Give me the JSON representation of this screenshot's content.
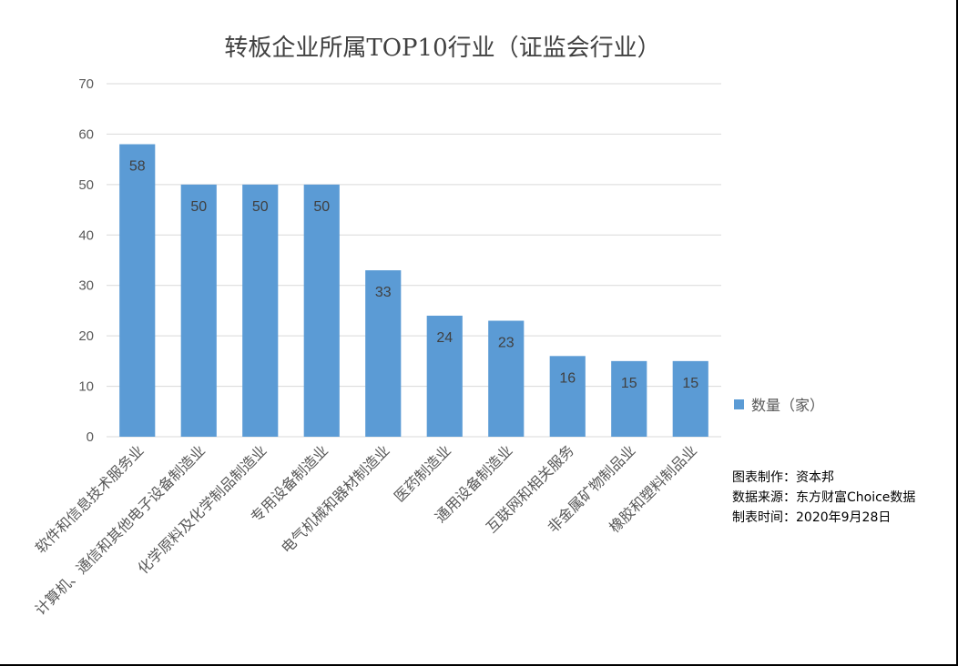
{
  "chart_data": {
    "type": "bar",
    "title": "转板企业所属TOP10行业（证监会行业）",
    "categories": [
      "软件和信息技术服务业",
      "计算机、通信和其他电子设备制造业",
      "化学原料及化学制品制造业",
      "专用设备制造业",
      "电气机械和器材制造业",
      "医药制造业",
      "通用设备制造业",
      "互联网和相关服务",
      "非金属矿物制品业",
      "橡胶和塑料制品业"
    ],
    "series": [
      {
        "name": "数量（家）",
        "values": [
          58,
          50,
          50,
          50,
          33,
          24,
          23,
          16,
          15,
          15
        ],
        "color": "#5b9bd5"
      }
    ],
    "ylim": [
      0,
      70
    ],
    "yticks": [
      0,
      10,
      20,
      30,
      40,
      50,
      60,
      70
    ],
    "grid": true,
    "legend": "right",
    "xlabel": "",
    "ylabel": ""
  },
  "notes": {
    "maker": "图表制作：资本邦",
    "source": "数据来源：东方财富Choice数据",
    "date": "制表时间：2020年9月28日"
  },
  "colors": {
    "bar": "#5b9bd5",
    "grid": "#d9d9d9",
    "text": "#595959"
  }
}
